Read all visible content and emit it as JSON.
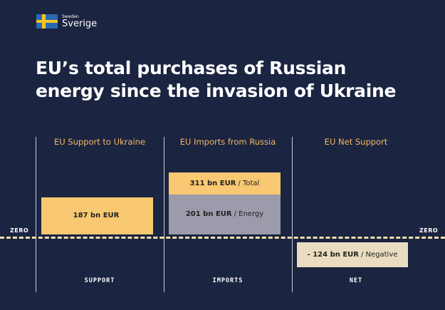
{
  "logo": {
    "small": "Sweden",
    "big": "Sverige"
  },
  "title_lines": [
    "EU’s total purchases of Russian",
    "energy since the invasion of Ukraine"
  ],
  "zero_label": "ZERO",
  "colors": {
    "background": "#1b2440",
    "support": "#f8c873",
    "total": "#f8c873",
    "energy": "#9b9bab",
    "net": "#e9dcc0",
    "header": "#f2b964"
  },
  "chart_data": {
    "type": "bar",
    "categories": [
      "EU Support to Ukraine",
      "EU Imports from Russia",
      "EU Net Support"
    ],
    "footer_labels": [
      "SUPPORT",
      "IMPORTS",
      "NET"
    ],
    "unit": "bn EUR",
    "bars": [
      {
        "category": "EU Support to Ukraine",
        "value": 187,
        "value_label": "187 bn EUR",
        "suffix": ""
      },
      {
        "category": "EU Imports from Russia",
        "value": 311,
        "value_label": "311 bn EUR",
        "suffix": "/ Total"
      },
      {
        "category": "EU Imports from Russia",
        "value": 201,
        "value_label": "201 bn EUR",
        "suffix": "/ Energy"
      },
      {
        "category": "EU Net Support",
        "value": -124,
        "value_label": "- 124 bn EUR",
        "suffix": "/ Negative"
      }
    ]
  }
}
